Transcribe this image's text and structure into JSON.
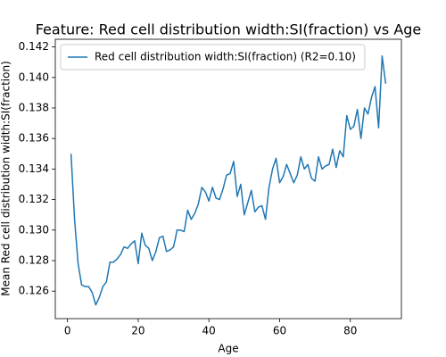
{
  "chart_data": {
    "type": "line",
    "title": "Feature: Red cell distribution width:SI(fraction) vs Age",
    "x_label": "Age",
    "y_label": "Mean Red cell distribution width:SI(fraction)",
    "x": [
      1,
      2,
      3,
      4,
      5,
      6,
      7,
      8,
      9,
      10,
      11,
      12,
      13,
      14,
      15,
      16,
      17,
      18,
      19,
      20,
      21,
      22,
      23,
      24,
      25,
      26,
      27,
      28,
      29,
      30,
      31,
      32,
      33,
      34,
      35,
      36,
      37,
      38,
      39,
      40,
      41,
      42,
      43,
      44,
      45,
      46,
      47,
      48,
      49,
      50,
      51,
      52,
      53,
      54,
      55,
      56,
      57,
      58,
      59,
      60,
      61,
      62,
      63,
      64,
      65,
      66,
      67,
      68,
      69,
      70,
      71,
      72,
      73,
      74,
      75,
      76,
      77,
      78,
      79,
      80,
      81,
      82,
      83,
      84,
      85,
      86,
      87,
      88,
      89,
      90
    ],
    "series": [
      {
        "name": "Red cell distribution width:SI(fraction) (R2=0.10)",
        "color": "#1f77b4",
        "values": [
          0.135,
          0.1307,
          0.1278,
          0.1264,
          0.1263,
          0.1263,
          0.1259,
          0.1251,
          0.1256,
          0.1263,
          0.1266,
          0.1279,
          0.1279,
          0.1281,
          0.1284,
          0.1289,
          0.1288,
          0.1291,
          0.1293,
          0.1278,
          0.1298,
          0.129,
          0.1288,
          0.128,
          0.1286,
          0.1295,
          0.1296,
          0.1286,
          0.1287,
          0.1289,
          0.13,
          0.13,
          0.1299,
          0.1313,
          0.1307,
          0.1311,
          0.1317,
          0.1328,
          0.1325,
          0.1319,
          0.1328,
          0.1321,
          0.132,
          0.1327,
          0.1336,
          0.1337,
          0.1345,
          0.1322,
          0.133,
          0.131,
          0.1318,
          0.1326,
          0.1312,
          0.1315,
          0.1316,
          0.1307,
          0.1328,
          0.134,
          0.1347,
          0.1331,
          0.1335,
          0.1343,
          0.1337,
          0.1331,
          0.1336,
          0.1348,
          0.134,
          0.1343,
          0.1334,
          0.1332,
          0.1348,
          0.134,
          0.1342,
          0.1343,
          0.1353,
          0.1341,
          0.1352,
          0.1348,
          0.1375,
          0.1366,
          0.1368,
          0.1379,
          0.136,
          0.138,
          0.1376,
          0.1387,
          0.1394,
          0.1367,
          0.1414,
          0.1396
        ]
      }
    ],
    "xlim": [
      -3.45,
      94.45
    ],
    "xticks": [
      0,
      20,
      40,
      60,
      80
    ],
    "ylim": [
      0.1242,
      0.1425
    ],
    "yticks": [
      0.126,
      0.128,
      {
        "value": 0.13,
        "label": "0.130"
      },
      0.132,
      0.134,
      0.136,
      0.138,
      {
        "value": 0.14,
        "label": "0.140"
      },
      0.142
    ],
    "legend": "upper left"
  }
}
